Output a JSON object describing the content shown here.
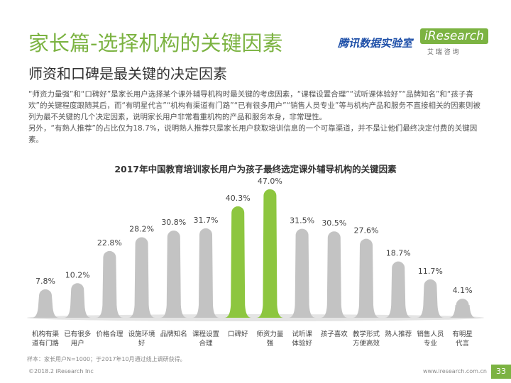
{
  "header": {
    "title": "家长篇-选择机构的关键因素",
    "subtitle": "师资和口碑是最关键的决定因素",
    "logo_left": "腾讯数据实验室",
    "logo_right": "iResearch",
    "logo_right_sub": "艾 瑞 咨 询"
  },
  "body": {
    "paragraphs": [
      "“师资力量强”和“口碑好”是家长用户选择某个课外辅导机构时最关键的考虑因素，“课程设置合理”“试听课体验好”“品牌知名”和“孩子喜欢”的关键程度跟随其后，而“有明星代言”“机构有渠道有门路”“已有很多用户”“销售人员专业”等与机构产品和服务不直接相关的因素则被列为最不关键的几个决定因素，说明家长用户非常看重机构的产品和服务本身，非常理性。",
      "另外，“有熟人推荐”的占比仅为18.7%，说明熟人推荐只是家长用户获取培训信息的一个可靠渠道，并不是让他们最终决定付费的关键因素。"
    ]
  },
  "chart_data": {
    "type": "bar",
    "title": "2017年中国教育培训家长用户为孩子最终选定课外辅导机构的关键因素",
    "categories": [
      [
        "机构有渠",
        "道有门路"
      ],
      [
        "已有很多",
        "用户"
      ],
      [
        "价格合理"
      ],
      [
        "设施环境",
        "好"
      ],
      [
        "品牌知名"
      ],
      [
        "课程设置",
        "合理"
      ],
      [
        "口碑好"
      ],
      [
        "师资力量",
        "强"
      ],
      [
        "试听课",
        "体验好"
      ],
      [
        "孩子喜欢"
      ],
      [
        "教学形式",
        "方便高效"
      ],
      [
        "熟人推荐"
      ],
      [
        "销售人员",
        "专业"
      ],
      [
        "有明星",
        "代言"
      ]
    ],
    "values": [
      7.8,
      10.2,
      22.8,
      28.2,
      30.8,
      31.7,
      40.3,
      47.0,
      31.5,
      30.5,
      27.6,
      18.7,
      11.7,
      4.1
    ],
    "value_labels": [
      "7.8%",
      "10.2%",
      "22.8%",
      "28.2%",
      "30.8%",
      "31.7%",
      "40.3%",
      "47.0%",
      "31.5%",
      "30.5%",
      "27.6%",
      "18.7%",
      "11.7%",
      "4.1%"
    ],
    "colors": [
      "#c3c3c3",
      "#c3c3c3",
      "#c3c3c3",
      "#c3c3c3",
      "#c3c3c3",
      "#c3c3c3",
      "#8dc63f",
      "#8dc63f",
      "#c3c3c3",
      "#c3c3c3",
      "#c3c3c3",
      "#c3c3c3",
      "#c3c3c3",
      "#c3c3c3"
    ]
  },
  "footer": {
    "note": "样本：家长用户N=1000；于2017年10月通过线上调研获得。",
    "source": "©2018.2 iResearch Inc",
    "url": "www.iresearch.com.cn",
    "page": "33"
  }
}
